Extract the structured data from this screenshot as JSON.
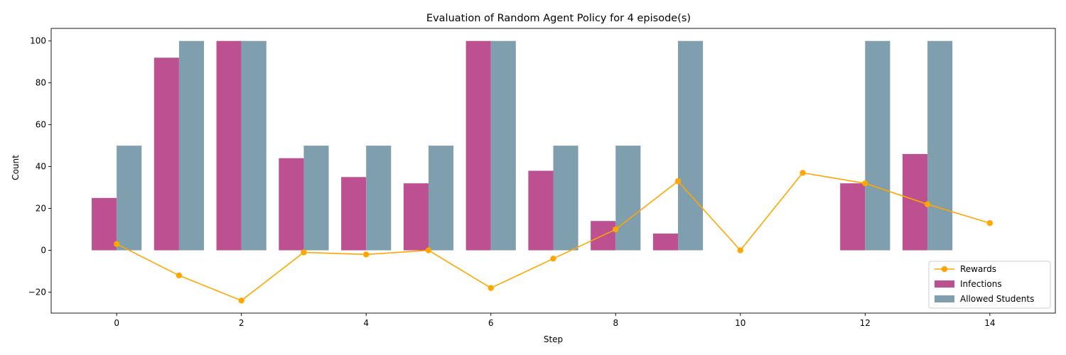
{
  "chart_data": {
    "type": "bar",
    "title": "Evaluation of Random Agent Policy for 4 episode(s)",
    "xlabel": "Step",
    "ylabel": "Count",
    "xlim": [
      -1.05,
      15.05
    ],
    "ylim": [
      -30,
      106
    ],
    "x_ticks": [
      0,
      2,
      4,
      6,
      8,
      10,
      12,
      14
    ],
    "y_ticks": [
      -20,
      0,
      20,
      40,
      60,
      80,
      100
    ],
    "steps": [
      0,
      1,
      2,
      3,
      4,
      5,
      6,
      7,
      8,
      9,
      10,
      11,
      12,
      13,
      14
    ],
    "series": [
      {
        "name": "Infections",
        "kind": "bar",
        "color": "#bc5090",
        "values": [
          25,
          92,
          100,
          44,
          35,
          32,
          100,
          38,
          14,
          8,
          0,
          0,
          32,
          46,
          0
        ]
      },
      {
        "name": "Allowed Students",
        "kind": "bar",
        "color": "#7f9eae",
        "values": [
          50,
          100,
          100,
          50,
          50,
          50,
          100,
          50,
          50,
          100,
          0,
          0,
          100,
          100,
          0
        ]
      },
      {
        "name": "Rewards",
        "kind": "line",
        "color": "#ffa600",
        "values": [
          3,
          -12,
          -24,
          -1,
          -2,
          0,
          -18,
          -4,
          10,
          33,
          0,
          37,
          32,
          22,
          13
        ]
      }
    ],
    "legend": {
      "position": "bottom-right",
      "entries": [
        "Rewards",
        "Infections",
        "Allowed Students"
      ]
    },
    "grid": false
  }
}
